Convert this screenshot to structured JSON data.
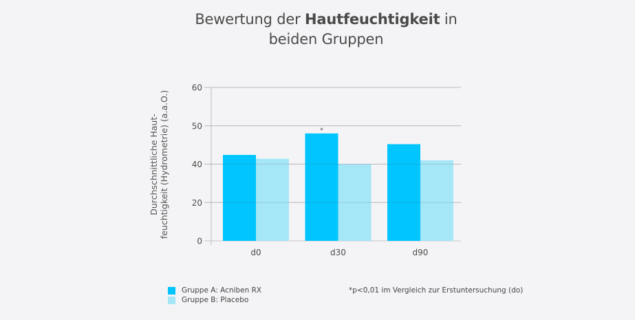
{
  "title": {
    "prefix": "Bewertung der ",
    "bold": "Hautfeuchtigkeit",
    "suffix": " in",
    "line2": "beiden Gruppen"
  },
  "chart_data": {
    "type": "bar",
    "title": "Bewertung der Hautfeuchtigkeit in beiden Gruppen",
    "ylabel_lines": [
      "Durchschnittliche Haut-",
      "feuchtigkeit (Hydrometrie) (a.a.O.)"
    ],
    "xlabel": "",
    "categories": [
      "d0",
      "d30",
      "d90"
    ],
    "yticks": [
      0,
      20,
      40,
      50,
      60
    ],
    "ytick_labels": [
      "0",
      "20",
      "40",
      "50",
      "60"
    ],
    "ylim": [
      0,
      60
    ],
    "grid": true,
    "series": [
      {
        "name": "Gruppe A: Acniben RX",
        "color": "#00c5ff",
        "values": [
          42.4,
          48.0,
          45.2
        ]
      },
      {
        "name": "Gruppe B: Placebo",
        "color": "#a5e6f7",
        "values": [
          41.4,
          40.0,
          41.0
        ]
      }
    ],
    "annotations": [
      {
        "category": "d30",
        "series": 0,
        "text": "*"
      }
    ],
    "footnote": "*p<0,01 im Vergleich zur Erstuntersuchung (do)",
    "legend_position": "bottom-left"
  }
}
